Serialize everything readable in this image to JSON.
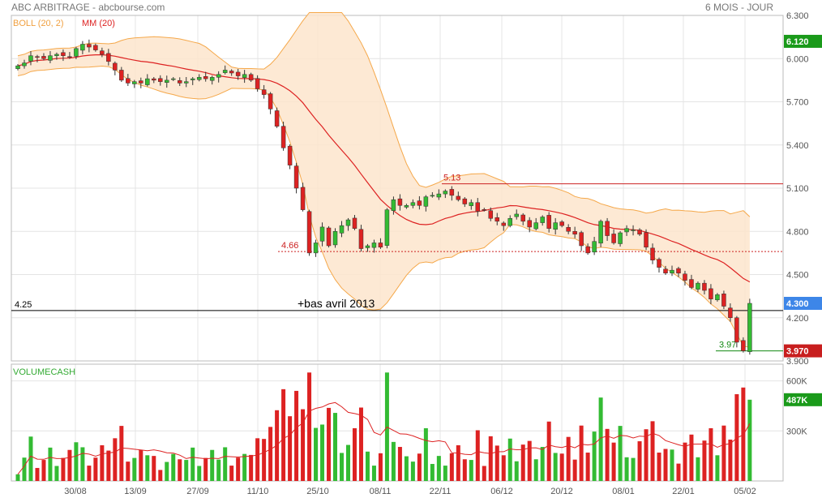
{
  "header": {
    "title": "ABC ARBITRAGE - abcbourse.com",
    "period": "6 MOIS - JOUR"
  },
  "legend": {
    "boll": "BOLL (20, 2)",
    "mm": "MM (20)",
    "volume": "VOLUMECASH"
  },
  "colors": {
    "up": "#33bb33",
    "down": "#dd2222",
    "boll_fill": "#fde5cc",
    "boll_line": "#f5a84a",
    "mm": "#dd2222"
  },
  "chart_data": [
    {
      "type": "candlestick",
      "x_ticks": [
        "30/08",
        "13/09",
        "27/09",
        "11/10",
        "25/10",
        "08/11",
        "22/11",
        "06/12",
        "20/12",
        "08/01",
        "22/01",
        "05/02"
      ],
      "ylim": [
        3.9,
        6.3
      ],
      "y_ticks": [
        "6.300",
        "6.000",
        "5.700",
        "5.400",
        "5.100",
        "4.800",
        "4.500",
        "4.200",
        "3.900"
      ],
      "price_badges": [
        {
          "label": "6.120",
          "value": 6.12,
          "color": "#1a9a1a"
        },
        {
          "label": "4.300",
          "value": 4.3,
          "color": "#3d86e8"
        },
        {
          "label": "3.970",
          "value": 3.97,
          "color": "#c81e1e"
        }
      ],
      "annotations": [
        {
          "text": "5.13",
          "value": 5.13,
          "style": "solid",
          "color": "#cc2222"
        },
        {
          "text": "4.66",
          "value": 4.66,
          "style": "dotted",
          "color": "#cc2222"
        },
        {
          "text": "4.25",
          "value": 4.25,
          "style": "solid",
          "color": "#000000"
        },
        {
          "text": "+bas avril 2013"
        },
        {
          "text": "3.97",
          "value": 3.97,
          "style": "solid",
          "color": "#118811"
        }
      ],
      "close": [
        5.95,
        5.97,
        6.02,
        6.01,
        6.0,
        6.02,
        6.03,
        6.02,
        6.01,
        6.07,
        6.1,
        6.08,
        6.06,
        6.03,
        5.98,
        5.92,
        5.85,
        5.83,
        5.84,
        5.83,
        5.86,
        5.85,
        5.84,
        5.85,
        5.86,
        5.83,
        5.84,
        5.86,
        5.87,
        5.86,
        5.87,
        5.89,
        5.92,
        5.9,
        5.88,
        5.89,
        5.85,
        5.79,
        5.75,
        5.65,
        5.53,
        5.38,
        5.26,
        5.1,
        4.95,
        4.65,
        4.72,
        4.83,
        4.7,
        4.8,
        4.84,
        4.88,
        4.82,
        4.68,
        4.7,
        4.72,
        4.69,
        4.95,
        5.02,
        4.98,
        4.98,
        5.0,
        4.98,
        5.04,
        5.05,
        5.06,
        5.08,
        5.05,
        5.02,
        4.99,
        5.0,
        4.94,
        4.95,
        4.89,
        4.87,
        4.84,
        4.89,
        4.92,
        4.87,
        4.83,
        4.86,
        4.9,
        4.82,
        4.86,
        4.84,
        4.8,
        4.78,
        4.7,
        4.65,
        4.73,
        4.87,
        4.77,
        4.72,
        4.79,
        4.82,
        4.81,
        4.78,
        4.69,
        4.6,
        4.55,
        4.51,
        4.53,
        4.51,
        4.46,
        4.41,
        4.44,
        4.39,
        4.33,
        4.36,
        4.28,
        4.2,
        4.03,
        3.97,
        4.3
      ],
      "volume_ylim": [
        0,
        700000
      ],
      "volume_ticks": [
        "600K",
        "300K"
      ],
      "volume_badge": {
        "label": "487K",
        "value": 487000,
        "color": "#1a9a1a"
      }
    }
  ]
}
